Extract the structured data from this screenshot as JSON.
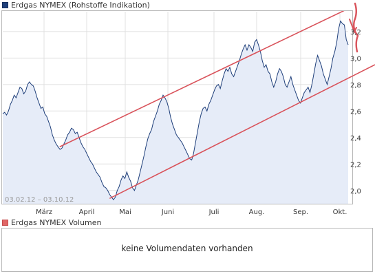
{
  "legend": {
    "price_series": "Erdgas NYMEX (Rohstoffe Indikation)",
    "volume_series": "Erdgas NYMEX Volumen"
  },
  "volume_panel": {
    "message": "keine Volumendaten vorhanden"
  },
  "colors": {
    "price_line": "#1f3f7a",
    "area_fill": "#e6ecf8",
    "channel": "#d9535b",
    "grid": "#e0e0e0",
    "volume_swatch": "#e06666"
  },
  "chart_data": {
    "type": "line",
    "date_range_label": "03.02.12 – 03.10.12",
    "x_ticks": [
      "März",
      "April",
      "Mai",
      "Juni",
      "Juli",
      "Aug.",
      "Sep.",
      "Okt."
    ],
    "y_ticks": [
      2.0,
      2.2,
      2.4,
      2.6,
      2.8,
      3.0,
      3.2
    ],
    "ylim": [
      1.9,
      3.35
    ],
    "grid": true,
    "series": [
      {
        "values": [
          2.58,
          2.59,
          2.57,
          2.6,
          2.65,
          2.68,
          2.72,
          2.7,
          2.74,
          2.78,
          2.77,
          2.73,
          2.75,
          2.8,
          2.82,
          2.8,
          2.79,
          2.75,
          2.7,
          2.66,
          2.62,
          2.63,
          2.58,
          2.56,
          2.52,
          2.48,
          2.42,
          2.38,
          2.35,
          2.33,
          2.31,
          2.32,
          2.35,
          2.38,
          2.42,
          2.44,
          2.47,
          2.46,
          2.43,
          2.44,
          2.4,
          2.36,
          2.33,
          2.31,
          2.28,
          2.25,
          2.22,
          2.2,
          2.17,
          2.14,
          2.12,
          2.1,
          2.06,
          2.03,
          2.02,
          2.0,
          1.97,
          1.95,
          1.93,
          1.95,
          2.0,
          2.03,
          2.08,
          2.11,
          2.09,
          2.14,
          2.1,
          2.07,
          2.02,
          2.0,
          2.04,
          2.08,
          2.14,
          2.2,
          2.26,
          2.33,
          2.39,
          2.43,
          2.46,
          2.52,
          2.56,
          2.6,
          2.65,
          2.68,
          2.72,
          2.7,
          2.67,
          2.62,
          2.55,
          2.5,
          2.46,
          2.42,
          2.4,
          2.38,
          2.36,
          2.33,
          2.3,
          2.27,
          2.24,
          2.23,
          2.28,
          2.36,
          2.44,
          2.52,
          2.58,
          2.62,
          2.63,
          2.6,
          2.65,
          2.68,
          2.72,
          2.76,
          2.79,
          2.8,
          2.77,
          2.83,
          2.88,
          2.92,
          2.9,
          2.93,
          2.88,
          2.86,
          2.9,
          2.94,
          2.98,
          3.03,
          3.07,
          3.1,
          3.06,
          3.1,
          3.08,
          3.05,
          3.12,
          3.14,
          3.1,
          3.05,
          2.98,
          2.93,
          2.95,
          2.9,
          2.88,
          2.82,
          2.78,
          2.82,
          2.88,
          2.92,
          2.9,
          2.86,
          2.8,
          2.78,
          2.82,
          2.86,
          2.8,
          2.76,
          2.72,
          2.68,
          2.66,
          2.7,
          2.74,
          2.76,
          2.78,
          2.74,
          2.8,
          2.88,
          2.96,
          3.02,
          2.98,
          2.94,
          2.88,
          2.84,
          2.8,
          2.86,
          2.92,
          3.0,
          3.05,
          3.12,
          3.22,
          3.28,
          3.26,
          3.25,
          3.14,
          3.1
        ]
      }
    ],
    "channel_lines": [
      {
        "name": "upper",
        "start": {
          "x_frac": 0.153,
          "value": 2.33
        },
        "end": {
          "x_frac": 1.0,
          "value": 3.47
        }
      },
      {
        "name": "lower",
        "start": {
          "x_frac": 0.287,
          "value": 1.94
        },
        "end": {
          "x_frac": 1.0,
          "value": 2.95
        }
      }
    ]
  }
}
